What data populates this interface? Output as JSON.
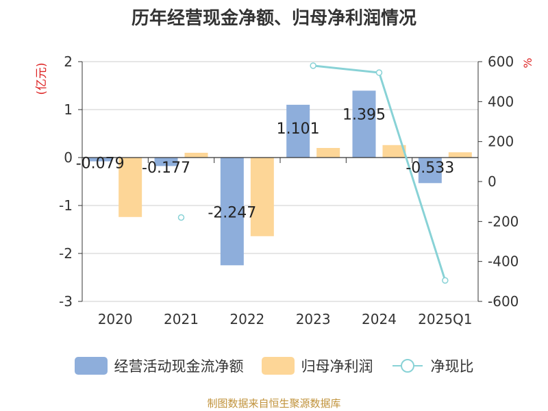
{
  "title": "历年经营现金净额、归母净利润情况",
  "footer": "制图数据来自恒生聚源数据库",
  "legend": {
    "cash_flow": "经营活动现金流净额",
    "net_profit": "归母净利润",
    "ratio": "净现比"
  },
  "colors": {
    "cash_flow": "#8eaedb",
    "net_profit": "#fdd697",
    "ratio": "#88d2d6",
    "unit_label": "#dd2222",
    "axis": "#333333",
    "grid": "#cccccc"
  },
  "chart_data": {
    "type": "bar",
    "categories": [
      "2020",
      "2021",
      "2022",
      "2023",
      "2024",
      "2025Q1"
    ],
    "series": [
      {
        "name": "经营活动现金流净额",
        "type": "bar",
        "axis": "left",
        "values": [
          -0.079,
          -0.177,
          -2.247,
          1.101,
          1.395,
          -0.533
        ],
        "labels": [
          "-0.079",
          "-0.177",
          "-2.247",
          "1.101",
          "1.395",
          "-0.533"
        ]
      },
      {
        "name": "归母净利润",
        "type": "bar",
        "axis": "left",
        "values": [
          -1.24,
          0.1,
          -1.64,
          0.2,
          0.26,
          0.11
        ]
      },
      {
        "name": "净现比",
        "type": "line",
        "axis": "right",
        "values": [
          null,
          -180,
          null,
          580,
          545,
          -495
        ]
      }
    ],
    "y_left": {
      "label": "(亿元)",
      "lim": [
        -3,
        2
      ],
      "ticks": [
        2,
        1,
        0,
        -1,
        -2,
        -3
      ]
    },
    "y_right": {
      "label": "%",
      "lim": [
        -600,
        600
      ],
      "ticks": [
        600,
        400,
        200,
        0,
        -200,
        -400,
        -600
      ]
    },
    "grid": true,
    "legend_position": "bottom"
  }
}
